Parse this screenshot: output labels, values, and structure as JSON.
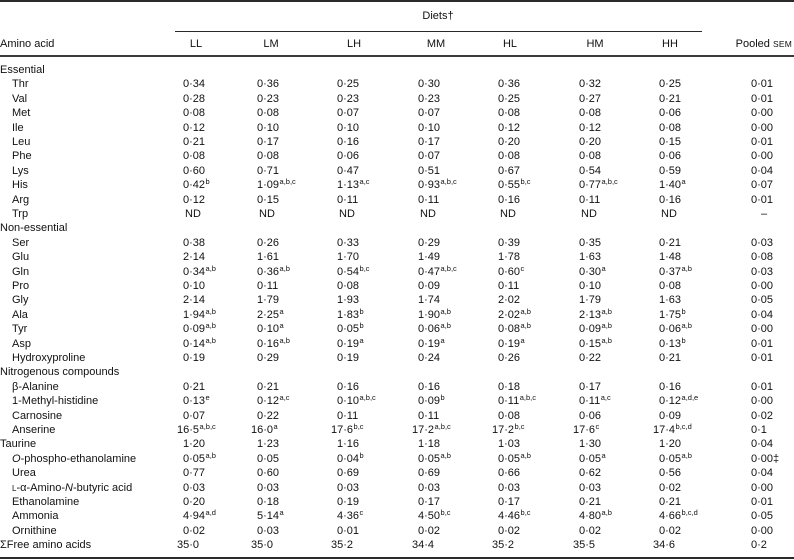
{
  "table": {
    "group_header": "Diets†",
    "header": {
      "label": "Amino acid",
      "diets": [
        "LL",
        "LM",
        "LH",
        "MM",
        "HL",
        "HM",
        "HH"
      ],
      "pooled": "Pooled",
      "sem": "SEM"
    },
    "rows": [
      {
        "type": "section",
        "label": "Essential"
      },
      {
        "type": "data",
        "indent": true,
        "label": "Thr",
        "values": [
          "0·34",
          "0·36",
          "0·25",
          "0·30",
          "0·36",
          "0·32",
          "0·25"
        ],
        "sem": "0·01"
      },
      {
        "type": "data",
        "indent": true,
        "label": "Val",
        "values": [
          "0·28",
          "0·23",
          "0·23",
          "0·23",
          "0·25",
          "0·27",
          "0·21"
        ],
        "sem": "0·01"
      },
      {
        "type": "data",
        "indent": true,
        "label": "Met",
        "values": [
          "0·08",
          "0·08",
          "0·07",
          "0·07",
          "0·08",
          "0·08",
          "0·06"
        ],
        "sem": "0·00"
      },
      {
        "type": "data",
        "indent": true,
        "label": "Ile",
        "values": [
          "0·12",
          "0·10",
          "0·10",
          "0·10",
          "0·12",
          "0·12",
          "0·08"
        ],
        "sem": "0·00"
      },
      {
        "type": "data",
        "indent": true,
        "label": "Leu",
        "values": [
          "0·21",
          "0·17",
          "0·16",
          "0·17",
          "0·20",
          "0·20",
          "0·15"
        ],
        "sem": "0·01"
      },
      {
        "type": "data",
        "indent": true,
        "label": "Phe",
        "values": [
          "0·08",
          "0·08",
          "0·06",
          "0·07",
          "0·08",
          "0·08",
          "0·06"
        ],
        "sem": "0·00"
      },
      {
        "type": "data",
        "indent": true,
        "label": "Lys",
        "values": [
          "0·60",
          "0·71",
          "0·47",
          "0·51",
          "0·67",
          "0·54",
          "0·59"
        ],
        "sem": "0·04"
      },
      {
        "type": "data",
        "indent": true,
        "label": "His",
        "values": [
          "0·42",
          "1·09",
          "1·13",
          "0·93",
          "0·55",
          "0·77",
          "1·40"
        ],
        "sup": [
          "b",
          "a,b,c",
          "a,c",
          "a,b,c",
          "b,c",
          "a,b,c",
          "a"
        ],
        "sem": "0·07"
      },
      {
        "type": "data",
        "indent": true,
        "label": "Arg",
        "values": [
          "0·12",
          "0·15",
          "0·11",
          "0·11",
          "0·16",
          "0·11",
          "0·16"
        ],
        "sem": "0·01"
      },
      {
        "type": "data",
        "indent": true,
        "label": "Trp",
        "values": [
          "ND",
          "ND",
          "ND",
          "ND",
          "ND",
          "ND",
          "ND"
        ],
        "sem": "–"
      },
      {
        "type": "section",
        "label": "Non-essential"
      },
      {
        "type": "data",
        "indent": true,
        "label": "Ser",
        "values": [
          "0·38",
          "0·26",
          "0·33",
          "0·29",
          "0·39",
          "0·35",
          "0·21"
        ],
        "sem": "0·03"
      },
      {
        "type": "data",
        "indent": true,
        "label": "Glu",
        "values": [
          "2·14",
          "1·61",
          "1·70",
          "1·49",
          "1·78",
          "1·63",
          "1·48"
        ],
        "sem": "0·08"
      },
      {
        "type": "data",
        "indent": true,
        "label": "Gln",
        "values": [
          "0·34",
          "0·36",
          "0·54",
          "0·47",
          "0·60",
          "0·30",
          "0·37"
        ],
        "sup": [
          "a,b",
          "a,b",
          "b,c",
          "a,b,c",
          "c",
          "a",
          "a,b"
        ],
        "sem": "0·03"
      },
      {
        "type": "data",
        "indent": true,
        "label": "Pro",
        "values": [
          "0·10",
          "0·11",
          "0·08",
          "0·09",
          "0·11",
          "0·10",
          "0·08"
        ],
        "sem": "0·00"
      },
      {
        "type": "data",
        "indent": true,
        "label": "Gly",
        "values": [
          "2·14",
          "1·79",
          "1·93",
          "1·74",
          "2·02",
          "1·79",
          "1·63"
        ],
        "sem": "0·05"
      },
      {
        "type": "data",
        "indent": true,
        "label": "Ala",
        "values": [
          "1·94",
          "2·25",
          "1·83",
          "1·90",
          "2·02",
          "2·13",
          "1·75"
        ],
        "sup": [
          "a,b",
          "a",
          "b",
          "a,b",
          "a,b",
          "a,b",
          "b"
        ],
        "sem": "0·04"
      },
      {
        "type": "data",
        "indent": true,
        "label": "Tyr",
        "values": [
          "0·09",
          "0·10",
          "0·05",
          "0·06",
          "0·08",
          "0·09",
          "0·06"
        ],
        "sup": [
          "a,b",
          "a",
          "b",
          "a,b",
          "a,b",
          "a,b",
          "a,b"
        ],
        "sem": "0·00"
      },
      {
        "type": "data",
        "indent": true,
        "label": "Asp",
        "values": [
          "0·14",
          "0·16",
          "0·19",
          "0·19",
          "0·19",
          "0·15",
          "0·13"
        ],
        "sup": [
          "a,b",
          "a,b",
          "a",
          "a",
          "a",
          "a,b",
          "b"
        ],
        "sem": "0·01"
      },
      {
        "type": "data",
        "indent": true,
        "label": "Hydroxyproline",
        "values": [
          "0·19",
          "0·29",
          "0·19",
          "0·24",
          "0·26",
          "0·22",
          "0·21"
        ],
        "sem": "0·01"
      },
      {
        "type": "section",
        "label": "Nitrogenous compounds"
      },
      {
        "type": "data",
        "indent": true,
        "label": "β-Alanine",
        "values": [
          "0·21",
          "0·21",
          "0·16",
          "0·16",
          "0·18",
          "0·17",
          "0·16"
        ],
        "sem": "0·01"
      },
      {
        "type": "data",
        "indent": true,
        "label": "1-Methyl-histidine",
        "values": [
          "0·13",
          "0·12",
          "0·10",
          "0·09",
          "0·11",
          "0·11",
          "0·12"
        ],
        "sup": [
          "e",
          "a,c",
          "a,b,c",
          "b",
          "a,b,c",
          "a,c",
          "a,d,e"
        ],
        "sem": "0·00"
      },
      {
        "type": "data",
        "indent": true,
        "label": "Carnosine",
        "values": [
          "0·07",
          "0·22",
          "0·11",
          "0·11",
          "0·08",
          "0·06",
          "0·09"
        ],
        "sem": "0·02"
      },
      {
        "type": "data",
        "indent": true,
        "label": "Anserine",
        "values": [
          "16·5",
          "16·0",
          "17·6",
          "17·2",
          "17·2",
          "17·6",
          "17·4"
        ],
        "sup": [
          "a,b,c",
          "a",
          "b,c",
          "a,b,c",
          "b,c",
          "c",
          "b,c,d"
        ],
        "sem": "0·1"
      },
      {
        "type": "data",
        "indent": false,
        "label": "Taurine",
        "values": [
          "1·20",
          "1·23",
          "1·16",
          "1·18",
          "1·03",
          "1·30",
          "1·20"
        ],
        "sem": "0·04"
      },
      {
        "type": "data",
        "indent": true,
        "label": "O-phospho-ethanolamine",
        "label_parts": [
          {
            "t": "O",
            "style": "it"
          },
          {
            "t": "-phospho-ethanolamine"
          }
        ],
        "values": [
          "0·05",
          "0·05",
          "0·04",
          "0·05",
          "0·05",
          "0·05",
          "0·05"
        ],
        "sup": [
          "a,b",
          "",
          "b",
          "a,b",
          "a,b",
          "a",
          "a,b"
        ],
        "sem": "0·00‡"
      },
      {
        "type": "data",
        "indent": true,
        "label": "Urea",
        "values": [
          "0·77",
          "0·60",
          "0·69",
          "0·69",
          "0·66",
          "0·62",
          "0·56"
        ],
        "sem": "0·04"
      },
      {
        "type": "data",
        "indent": true,
        "label": "L-α-Amino-N-butyric acid",
        "label_parts": [
          {
            "t": "L",
            "style": "sc"
          },
          {
            "t": "-α-Amino-"
          },
          {
            "t": "N",
            "style": "it"
          },
          {
            "t": "-butyric acid"
          }
        ],
        "values": [
          "0·03",
          "0·03",
          "0·03",
          "0·03",
          "0·03",
          "0·03",
          "0·02"
        ],
        "sem": "0·00"
      },
      {
        "type": "data",
        "indent": true,
        "label": "Ethanolamine",
        "values": [
          "0·20",
          "0·18",
          "0·19",
          "0·17",
          "0·17",
          "0·21",
          "0·21"
        ],
        "sem": "0·01"
      },
      {
        "type": "data",
        "indent": true,
        "label": "Ammonia",
        "values": [
          "4·94",
          "5·14",
          "4·36",
          "4·50",
          "4·46",
          "4·80",
          "4·66"
        ],
        "sup": [
          "a,d",
          "a",
          "c",
          "b,c",
          "b,c",
          "a,b",
          "b,c,d"
        ],
        "sem": "0·05"
      },
      {
        "type": "data",
        "indent": true,
        "label": "Ornithine",
        "values": [
          "0·02",
          "0·03",
          "0·01",
          "0·02",
          "0·02",
          "0·02",
          "0·02"
        ],
        "sem": "0·00"
      },
      {
        "type": "total",
        "indent": false,
        "label": "ΣFree amino acids",
        "values": [
          "35·0",
          "35·0",
          "35·2",
          "34·4",
          "35·2",
          "35·5",
          "34·6"
        ],
        "sem": "0·2"
      }
    ]
  }
}
